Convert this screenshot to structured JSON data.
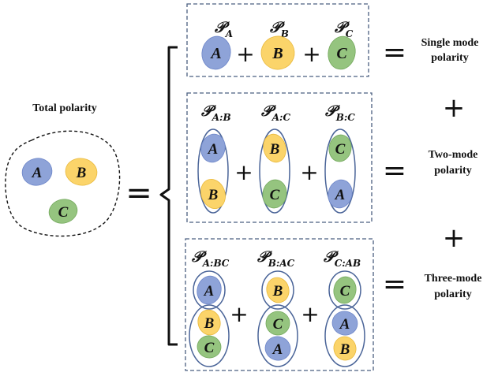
{
  "title": "Total polarity",
  "modes": {
    "A": {
      "label": "A",
      "color": "#8ea3d8",
      "stroke": "#6d86c9"
    },
    "B": {
      "label": "B",
      "color": "#fbd46a",
      "stroke": "#e9b93c"
    },
    "C": {
      "label": "C",
      "color": "#95c47f",
      "stroke": "#74a95d"
    }
  },
  "operators": {
    "plus": "+",
    "equals": "="
  },
  "rows": [
    {
      "caption_line1": "Single mode",
      "caption_line2": "polarity",
      "terms": [
        {
          "symbol": "𝒫",
          "sub": "A"
        },
        {
          "symbol": "𝒫",
          "sub": "B"
        },
        {
          "symbol": "𝒫",
          "sub": "C"
        }
      ]
    },
    {
      "caption_line1": "Two-mode",
      "caption_line2": "polarity",
      "terms": [
        {
          "symbol": "𝒫",
          "sub": "A:B"
        },
        {
          "symbol": "𝒫",
          "sub": "A:C"
        },
        {
          "symbol": "𝒫",
          "sub": "B:C"
        }
      ]
    },
    {
      "caption_line1": "Three-mode",
      "caption_line2": "polarity",
      "terms": [
        {
          "symbol": "𝒫",
          "sub": "A:BC"
        },
        {
          "symbol": "𝒫",
          "sub": "B:AC"
        },
        {
          "symbol": "𝒫",
          "sub": "C:AB"
        }
      ]
    }
  ],
  "colors": {
    "box_border": "#4a5f80",
    "outline": "#4a6498",
    "text": "#111111"
  }
}
